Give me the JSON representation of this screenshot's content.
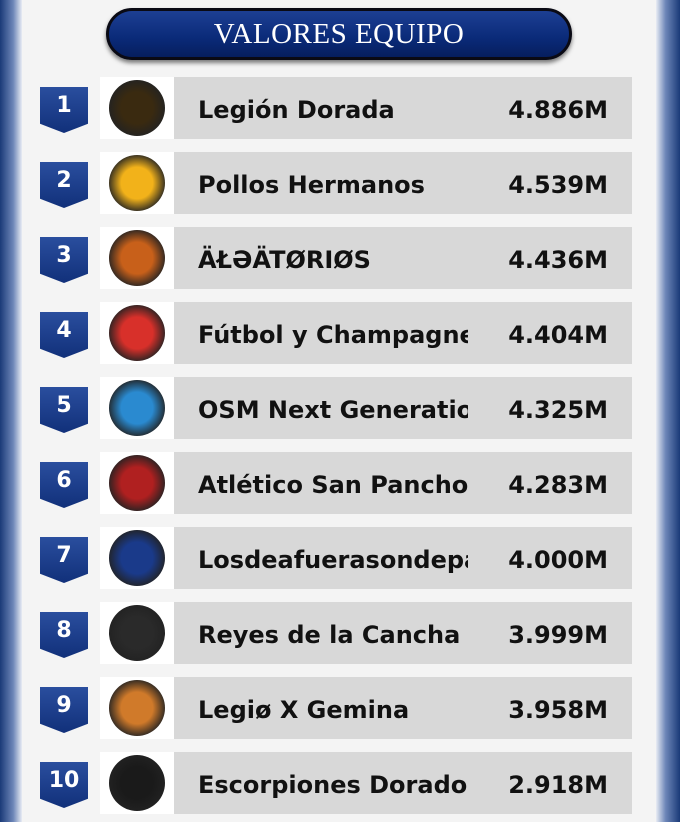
{
  "title": "VALORES EQUIPO",
  "colors": {
    "accent": "#0a2a78",
    "row_bg": "#d8d8d8"
  },
  "teams": [
    {
      "rank": "1",
      "name": "Legión Dorada",
      "value": "4.886M",
      "logo_color": "#3a2a10"
    },
    {
      "rank": "2",
      "name": "Pollos Hermanos",
      "value": "4.539M",
      "logo_color": "#f2b21a"
    },
    {
      "rank": "3",
      "name": "ÄŁƏÄTØRIØS",
      "value": "4.436M",
      "logo_color": "#c8601a"
    },
    {
      "rank": "4",
      "name": "Fútbol y Champagne",
      "value": "4.404M",
      "logo_color": "#d8302a"
    },
    {
      "rank": "5",
      "name": "OSM Next Generation",
      "value": "4.325M",
      "logo_color": "#2a8ad0"
    },
    {
      "rank": "6",
      "name": "Atlético San Panchoo",
      "value": "4.283M",
      "logo_color": "#b02020"
    },
    {
      "rank": "7",
      "name": "Losdeafuerasondepalo",
      "value": "4.000M",
      "logo_color": "#1a3a8a"
    },
    {
      "rank": "8",
      "name": "Reyes de la Cancha",
      "value": "3.999M",
      "logo_color": "#2a2a2a"
    },
    {
      "rank": "9",
      "name": "Legiø X Gemina",
      "value": "3.958M",
      "logo_color": "#d07a2a"
    },
    {
      "rank": "10",
      "name": "Escorpiones Dorados",
      "value": "2.918M",
      "logo_color": "#1a1a1a"
    }
  ]
}
